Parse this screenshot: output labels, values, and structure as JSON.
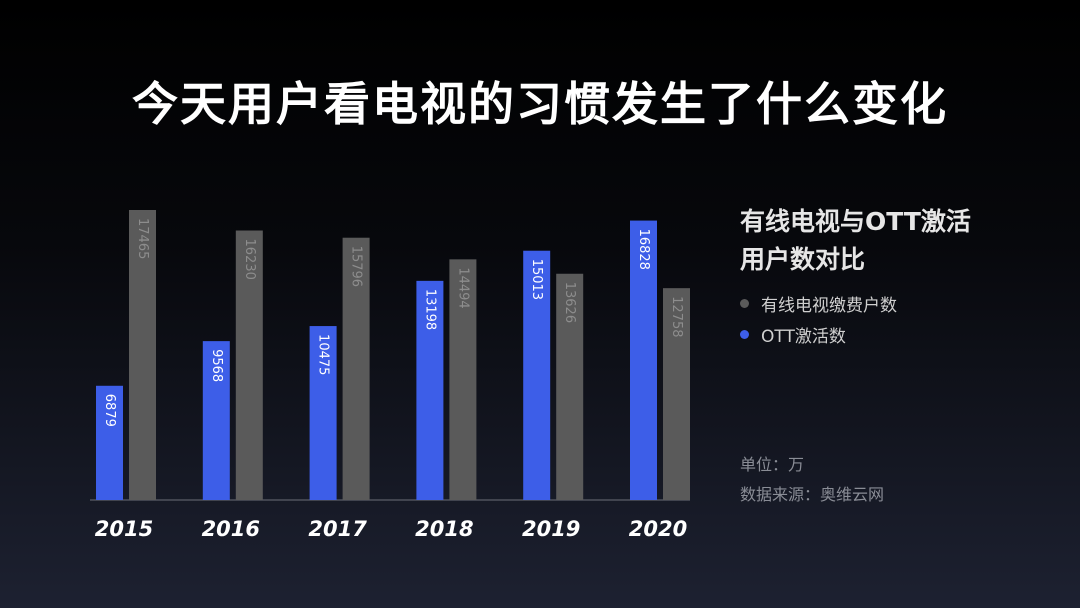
{
  "title": "今天用户看电视的习惯发生了什么变化",
  "legend": {
    "title_line1": "有线电视与OTT激活",
    "title_line2": "用户数对比",
    "items": [
      {
        "label": "有线电视缴费户数",
        "color": "#5a5a5a"
      },
      {
        "label": "OTT激活数",
        "color": "#3d5ee8"
      }
    ]
  },
  "notes": {
    "unit": "单位：万",
    "source": "数据来源：奥维云网"
  },
  "chart_data": {
    "type": "bar",
    "categories": [
      "2015",
      "2016",
      "2017",
      "2018",
      "2019",
      "2020"
    ],
    "series": [
      {
        "name": "OTT激活数",
        "color": "#3d5ee8",
        "values": [
          6879,
          9568,
          10475,
          13198,
          15013,
          16828
        ]
      },
      {
        "name": "有线电视缴费户数",
        "color": "#5a5a5a",
        "values": [
          17465,
          16230,
          15796,
          14494,
          13626,
          12758
        ]
      }
    ],
    "ylim": [
      0,
      17465
    ],
    "grid": false,
    "legend_position": "right"
  }
}
